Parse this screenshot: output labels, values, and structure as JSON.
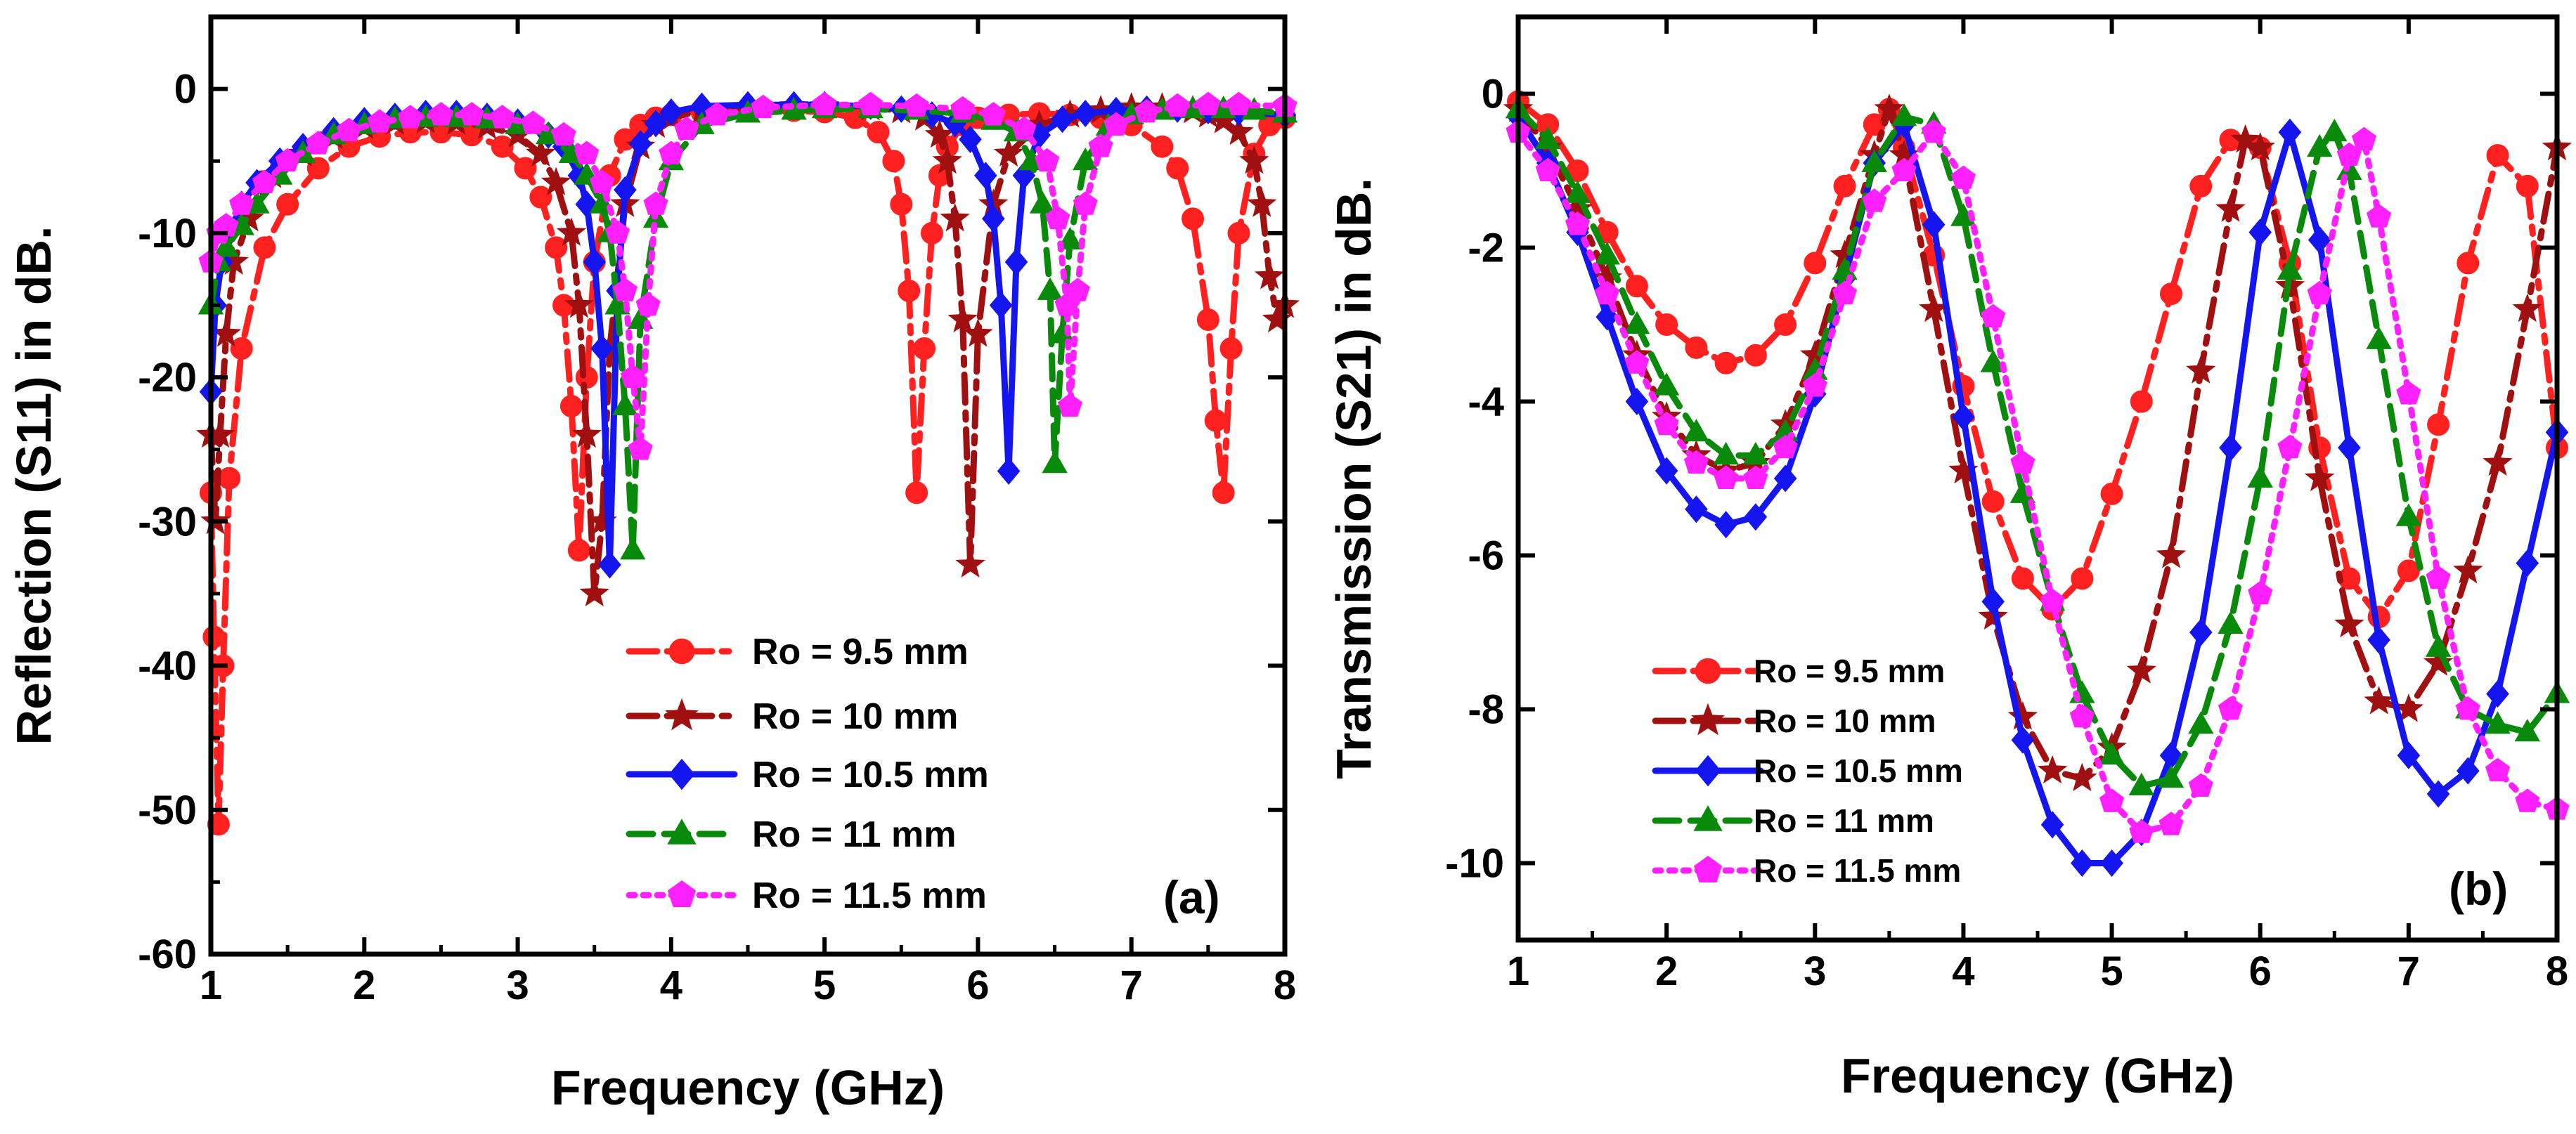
{
  "chart_data": [
    {
      "panel": "a",
      "type": "line",
      "panel_label": "(a)",
      "xlabel": "Frequency (GHz)",
      "ylabel": "Reflection (S11) in dB.",
      "xlim": [
        1,
        8
      ],
      "ylim": [
        -60,
        5
      ],
      "xticks": [
        1,
        2,
        3,
        4,
        5,
        6,
        7,
        8
      ],
      "xtick_labels": [
        "1",
        "2",
        "3",
        "4",
        "5",
        "6",
        "7",
        "8"
      ],
      "yticks": [
        0,
        -10,
        -20,
        -30,
        -40,
        -50,
        -60
      ],
      "ytick_labels": [
        "0",
        "-10",
        "-20",
        "-30",
        "-40",
        "-50",
        "-60"
      ],
      "grid": false,
      "legend_position": "bottom-center",
      "series": [
        {
          "name": "Ro = 9.5 mm",
          "color": "#ff2020",
          "marker": "circle",
          "dash": "dashdot",
          "x": [
            1.0,
            1.02,
            1.05,
            1.08,
            1.12,
            1.2,
            1.35,
            1.5,
            1.7,
            1.9,
            2.1,
            2.3,
            2.5,
            2.7,
            2.9,
            3.05,
            3.15,
            3.25,
            3.3,
            3.35,
            3.4,
            3.45,
            3.5,
            3.6,
            3.7,
            3.8,
            3.9,
            4.0,
            4.2,
            4.5,
            4.8,
            5.0,
            5.2,
            5.35,
            5.45,
            5.5,
            5.55,
            5.6,
            5.65,
            5.7,
            5.75,
            5.8,
            5.9,
            6.0,
            6.2,
            6.4,
            6.6,
            6.8,
            7.0,
            7.2,
            7.3,
            7.4,
            7.5,
            7.55,
            7.6,
            7.65,
            7.7,
            7.8,
            7.9,
            8.0
          ],
          "y": [
            -28,
            -38,
            -51,
            -40,
            -27,
            -18,
            -11,
            -8,
            -5.5,
            -4,
            -3.3,
            -3,
            -3,
            -3.2,
            -4,
            -5.5,
            -7.5,
            -11,
            -15,
            -22,
            -32,
            -20,
            -12,
            -6,
            -3.5,
            -2.5,
            -2,
            -1.8,
            -1.6,
            -1.5,
            -1.5,
            -1.6,
            -2,
            -3,
            -5,
            -8,
            -14,
            -28,
            -18,
            -10,
            -6,
            -4,
            -2.5,
            -2,
            -1.8,
            -1.7,
            -1.8,
            -2,
            -2.5,
            -4,
            -5.5,
            -9,
            -16,
            -23,
            -28,
            -18,
            -10,
            -4.5,
            -2.5,
            -2
          ]
        },
        {
          "name": "Ro = 10 mm",
          "color": "#a01010",
          "marker": "star",
          "dash": "dashdot",
          "x": [
            1.0,
            1.03,
            1.06,
            1.1,
            1.15,
            1.25,
            1.4,
            1.6,
            1.8,
            2.0,
            2.2,
            2.4,
            2.6,
            2.8,
            3.0,
            3.15,
            3.25,
            3.35,
            3.4,
            3.45,
            3.5,
            3.55,
            3.6,
            3.7,
            3.8,
            3.9,
            4.0,
            4.2,
            4.5,
            4.8,
            5.0,
            5.3,
            5.5,
            5.65,
            5.75,
            5.8,
            5.85,
            5.9,
            5.95,
            6.0,
            6.1,
            6.2,
            6.4,
            6.6,
            6.8,
            7.0,
            7.2,
            7.4,
            7.5,
            7.6,
            7.7,
            7.8,
            7.85,
            7.9,
            7.95,
            8.0
          ],
          "y": [
            -24,
            -30,
            -24,
            -17,
            -12,
            -9,
            -6,
            -4.5,
            -3.3,
            -2.6,
            -2.3,
            -2.2,
            -2.3,
            -2.6,
            -3.2,
            -4.5,
            -6.5,
            -10,
            -15,
            -24,
            -35,
            -30,
            -18,
            -8,
            -4,
            -2.5,
            -2,
            -1.5,
            -1.3,
            -1.2,
            -1.2,
            -1.3,
            -1.5,
            -2,
            -3.2,
            -5,
            -9,
            -16,
            -33,
            -17,
            -8,
            -4.5,
            -2.5,
            -1.8,
            -1.5,
            -1.3,
            -1.3,
            -1.5,
            -1.8,
            -2.2,
            -3,
            -5,
            -8,
            -13,
            -16,
            -15
          ]
        },
        {
          "name": "Ro = 10.5 mm",
          "color": "#1515f0",
          "marker": "diamond",
          "dash": "solid",
          "x": [
            1.0,
            1.03,
            1.07,
            1.12,
            1.2,
            1.3,
            1.45,
            1.6,
            1.8,
            2.0,
            2.2,
            2.4,
            2.6,
            2.8,
            3.0,
            3.2,
            3.3,
            3.4,
            3.45,
            3.5,
            3.55,
            3.6,
            3.65,
            3.7,
            3.8,
            3.9,
            4.0,
            4.2,
            4.5,
            4.8,
            5.0,
            5.3,
            5.5,
            5.7,
            5.85,
            5.95,
            6.05,
            6.1,
            6.15,
            6.2,
            6.25,
            6.3,
            6.4,
            6.55,
            6.7,
            6.9,
            7.1,
            7.3,
            7.5,
            7.7,
            8.0
          ],
          "y": [
            -21,
            -15,
            -12,
            -10,
            -8,
            -6.5,
            -5,
            -4,
            -2.9,
            -2.2,
            -1.9,
            -1.7,
            -1.7,
            -1.9,
            -2.3,
            -3.2,
            -4,
            -6,
            -8,
            -12,
            -18,
            -33,
            -14,
            -7,
            -3.8,
            -2.4,
            -1.6,
            -1.2,
            -1.1,
            -1.1,
            -1.1,
            -1.2,
            -1.4,
            -1.8,
            -2.4,
            -3.5,
            -6,
            -9,
            -15,
            -26.5,
            -12,
            -6,
            -3.2,
            -2.1,
            -1.7,
            -1.5,
            -1.4,
            -1.4,
            -1.5,
            -1.6,
            -1.8
          ]
        },
        {
          "name": "Ro = 11 mm",
          "color": "#0a8a0a",
          "marker": "triangle",
          "dash": "dashed",
          "x": [
            1.0,
            1.05,
            1.1,
            1.2,
            1.3,
            1.45,
            1.6,
            1.8,
            2.0,
            2.2,
            2.4,
            2.6,
            2.8,
            3.0,
            3.2,
            3.35,
            3.45,
            3.55,
            3.6,
            3.65,
            3.7,
            3.75,
            3.8,
            3.9,
            4.0,
            4.2,
            4.5,
            4.8,
            5.0,
            5.3,
            5.6,
            5.9,
            6.1,
            6.25,
            6.35,
            6.42,
            6.47,
            6.5,
            6.55,
            6.6,
            6.7,
            6.85,
            7.0,
            7.2,
            7.4,
            7.6,
            7.8,
            8.0
          ],
          "y": [
            -15,
            -12,
            -11,
            -9.5,
            -8,
            -6,
            -4.5,
            -3.2,
            -2.5,
            -2.1,
            -2,
            -2,
            -2.1,
            -2.5,
            -3.2,
            -4.5,
            -6,
            -8,
            -10,
            -15,
            -22,
            -32,
            -16,
            -9,
            -5,
            -2.5,
            -1.7,
            -1.5,
            -1.4,
            -1.4,
            -1.5,
            -1.7,
            -2.2,
            -3,
            -5,
            -8,
            -14,
            -26,
            -17,
            -10.5,
            -5,
            -2.6,
            -1.8,
            -1.5,
            -1.4,
            -1.4,
            -1.5,
            -1.7
          ]
        },
        {
          "name": "Ro = 11.5 mm",
          "color": "#ff20ff",
          "marker": "pentagon",
          "dash": "dotted",
          "x": [
            1.0,
            1.05,
            1.1,
            1.2,
            1.35,
            1.5,
            1.7,
            1.9,
            2.1,
            2.3,
            2.5,
            2.7,
            2.9,
            3.1,
            3.3,
            3.45,
            3.55,
            3.65,
            3.7,
            3.75,
            3.8,
            3.85,
            3.9,
            4.0,
            4.1,
            4.3,
            4.6,
            5.0,
            5.3,
            5.6,
            5.9,
            6.1,
            6.3,
            6.45,
            6.52,
            6.58,
            6.6,
            6.65,
            6.7,
            6.8,
            6.9,
            7.1,
            7.3,
            7.5,
            7.7,
            8.0
          ],
          "y": [
            -12,
            -10,
            -9.5,
            -8,
            -6.5,
            -5,
            -3.8,
            -2.9,
            -2.3,
            -2,
            -1.8,
            -1.8,
            -2,
            -2.4,
            -3.2,
            -4.5,
            -6.5,
            -10,
            -14,
            -20,
            -25,
            -15,
            -8,
            -4.5,
            -2.8,
            -1.8,
            -1.3,
            -1.1,
            -1.1,
            -1.2,
            -1.4,
            -1.8,
            -2.8,
            -5,
            -9,
            -15,
            -22,
            -14,
            -8,
            -4,
            -2.5,
            -1.6,
            -1.2,
            -1.1,
            -1.1,
            -1.2
          ]
        }
      ]
    },
    {
      "panel": "b",
      "type": "line",
      "panel_label": "(b)",
      "xlabel": "Frequency (GHz)",
      "ylabel": "Transmission (S21) in dB.",
      "xlim": [
        1,
        8
      ],
      "ylim": [
        -11,
        1
      ],
      "xticks": [
        1,
        2,
        3,
        4,
        5,
        6,
        7,
        8
      ],
      "xtick_labels": [
        "1",
        "2",
        "3",
        "4",
        "5",
        "6",
        "7",
        "8"
      ],
      "yticks": [
        0,
        -2,
        -4,
        -6,
        -8,
        -10
      ],
      "ytick_labels": [
        "0",
        "-2",
        "-4",
        "-6",
        "-8",
        "-10"
      ],
      "grid": false,
      "legend_position": "bottom-left",
      "series": [
        {
          "name": "Ro = 9.5 mm",
          "color": "#ff2020",
          "marker": "circle",
          "dash": "dashdot",
          "x": [
            1.0,
            1.2,
            1.4,
            1.6,
            1.8,
            2.0,
            2.2,
            2.4,
            2.6,
            2.8,
            3.0,
            3.2,
            3.4,
            3.5,
            3.6,
            3.8,
            4.0,
            4.2,
            4.4,
            4.6,
            4.8,
            5.0,
            5.2,
            5.4,
            5.6,
            5.8,
            6.0,
            6.2,
            6.4,
            6.6,
            6.8,
            7.0,
            7.2,
            7.4,
            7.6,
            7.8,
            8.0
          ],
          "y": [
            -0.1,
            -0.4,
            -1.0,
            -1.8,
            -2.5,
            -3.0,
            -3.3,
            -3.5,
            -3.4,
            -3.0,
            -2.2,
            -1.2,
            -0.4,
            -0.2,
            -0.7,
            -2.1,
            -3.8,
            -5.3,
            -6.3,
            -6.7,
            -6.3,
            -5.2,
            -4.0,
            -2.6,
            -1.2,
            -0.6,
            -0.7,
            -2.2,
            -4.6,
            -6.3,
            -6.8,
            -6.2,
            -4.3,
            -2.2,
            -0.8,
            -1.2,
            -4.6
          ]
        },
        {
          "name": "Ro = 10 mm",
          "color": "#a01010",
          "marker": "star",
          "dash": "dashdot",
          "x": [
            1.0,
            1.2,
            1.4,
            1.6,
            1.8,
            2.0,
            2.2,
            2.4,
            2.6,
            2.8,
            3.0,
            3.2,
            3.4,
            3.5,
            3.6,
            3.8,
            4.0,
            4.2,
            4.4,
            4.6,
            4.8,
            5.0,
            5.2,
            5.4,
            5.6,
            5.8,
            5.9,
            6.0,
            6.2,
            6.4,
            6.6,
            6.8,
            7.0,
            7.2,
            7.4,
            7.6,
            7.8,
            8.0
          ],
          "y": [
            -0.2,
            -0.7,
            -1.5,
            -2.4,
            -3.4,
            -4.2,
            -4.7,
            -4.9,
            -4.8,
            -4.3,
            -3.4,
            -2.1,
            -0.8,
            -0.2,
            -0.8,
            -2.8,
            -4.9,
            -6.8,
            -8.1,
            -8.8,
            -8.9,
            -8.5,
            -7.5,
            -6.0,
            -3.6,
            -1.5,
            -0.6,
            -0.7,
            -2.5,
            -5.0,
            -6.9,
            -7.9,
            -8.0,
            -7.4,
            -6.2,
            -4.8,
            -2.8,
            -0.7
          ]
        },
        {
          "name": "Ro = 10.5 mm",
          "color": "#1515f0",
          "marker": "diamond",
          "dash": "solid",
          "x": [
            1.0,
            1.2,
            1.4,
            1.6,
            1.8,
            2.0,
            2.2,
            2.4,
            2.6,
            2.8,
            3.0,
            3.2,
            3.4,
            3.6,
            3.8,
            4.0,
            4.2,
            4.4,
            4.6,
            4.8,
            5.0,
            5.2,
            5.4,
            5.6,
            5.8,
            6.0,
            6.2,
            6.4,
            6.6,
            6.8,
            7.0,
            7.2,
            7.4,
            7.6,
            7.8,
            8.0
          ],
          "y": [
            -0.3,
            -0.9,
            -1.8,
            -2.9,
            -4.0,
            -4.9,
            -5.4,
            -5.6,
            -5.5,
            -5.0,
            -3.9,
            -2.4,
            -0.9,
            -0.4,
            -1.7,
            -4.2,
            -6.6,
            -8.4,
            -9.5,
            -10.0,
            -10.0,
            -9.6,
            -8.6,
            -7.0,
            -4.6,
            -1.8,
            -0.5,
            -1.9,
            -4.6,
            -7.1,
            -8.6,
            -9.1,
            -8.8,
            -7.8,
            -6.1,
            -4.4
          ]
        },
        {
          "name": "Ro = 11 mm",
          "color": "#0a8a0a",
          "marker": "triangle",
          "dash": "dashed",
          "x": [
            1.0,
            1.2,
            1.4,
            1.6,
            1.8,
            2.0,
            2.2,
            2.4,
            2.6,
            2.8,
            3.0,
            3.2,
            3.4,
            3.6,
            3.8,
            4.0,
            4.2,
            4.4,
            4.6,
            4.8,
            5.0,
            5.2,
            5.4,
            5.6,
            5.8,
            6.0,
            6.2,
            6.4,
            6.5,
            6.6,
            6.8,
            7.0,
            7.2,
            7.4,
            7.6,
            7.8,
            8.0
          ],
          "y": [
            -0.2,
            -0.6,
            -1.3,
            -2.1,
            -3.0,
            -3.8,
            -4.4,
            -4.7,
            -4.7,
            -4.4,
            -3.6,
            -2.3,
            -0.9,
            -0.3,
            -0.4,
            -1.6,
            -3.5,
            -5.2,
            -6.6,
            -7.8,
            -8.6,
            -9.0,
            -8.9,
            -8.2,
            -6.9,
            -5.0,
            -2.3,
            -0.7,
            -0.5,
            -1.0,
            -3.2,
            -5.5,
            -7.2,
            -8.0,
            -8.2,
            -8.3,
            -7.8
          ]
        },
        {
          "name": "Ro = 11.5 mm",
          "color": "#ff20ff",
          "marker": "pentagon",
          "dash": "dotted",
          "x": [
            1.0,
            1.2,
            1.4,
            1.6,
            1.8,
            2.0,
            2.2,
            2.4,
            2.6,
            2.8,
            3.0,
            3.2,
            3.4,
            3.6,
            3.8,
            4.0,
            4.2,
            4.4,
            4.6,
            4.8,
            5.0,
            5.2,
            5.4,
            5.6,
            5.8,
            6.0,
            6.2,
            6.4,
            6.6,
            6.7,
            6.8,
            7.0,
            7.2,
            7.4,
            7.6,
            7.8,
            8.0
          ],
          "y": [
            -0.5,
            -1.0,
            -1.7,
            -2.6,
            -3.5,
            -4.3,
            -4.8,
            -5.0,
            -5.0,
            -4.6,
            -3.8,
            -2.6,
            -1.4,
            -1.0,
            -0.5,
            -1.1,
            -2.9,
            -4.8,
            -6.6,
            -8.1,
            -9.2,
            -9.6,
            -9.5,
            -9.0,
            -8.0,
            -6.5,
            -4.6,
            -2.6,
            -0.8,
            -0.6,
            -1.6,
            -3.9,
            -6.3,
            -8.0,
            -8.8,
            -9.2,
            -9.3
          ]
        }
      ]
    }
  ]
}
